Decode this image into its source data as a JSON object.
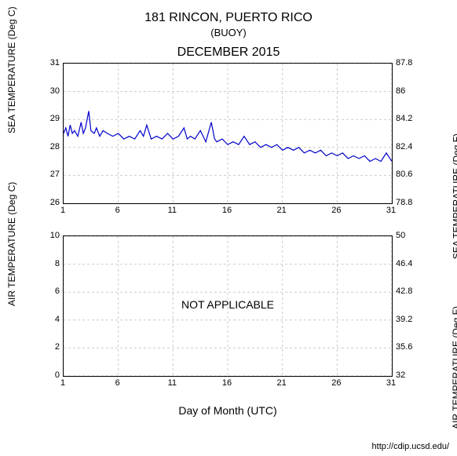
{
  "header": {
    "station": "181 RINCON, PUERTO RICO",
    "subtype": "(BUOY)",
    "period": "DECEMBER 2015"
  },
  "xaxis": {
    "label": "Day of Month (UTC)",
    "min": 1,
    "max": 31,
    "ticks": [
      1,
      6,
      11,
      16,
      21,
      26,
      31
    ]
  },
  "chart1": {
    "type": "line",
    "ylabel_left": "SEA TEMPERATURE (Deg C)",
    "ylabel_right": "SEA TEMPERATURE (Deg F)",
    "ylim_left": [
      26,
      31
    ],
    "ylim_right": [
      78.8,
      87.8
    ],
    "yticks_left": [
      26,
      27,
      28,
      29,
      30,
      31
    ],
    "yticks_right": [
      78.8,
      80.6,
      82.4,
      84.2,
      86,
      87.8
    ],
    "line_color": "#0000cc",
    "line_width": 1.2,
    "grid_color": "#cccccc",
    "data": [
      [
        1.0,
        28.5
      ],
      [
        1.2,
        28.7
      ],
      [
        1.4,
        28.4
      ],
      [
        1.6,
        28.8
      ],
      [
        1.8,
        28.5
      ],
      [
        2.0,
        28.6
      ],
      [
        2.3,
        28.4
      ],
      [
        2.6,
        28.9
      ],
      [
        2.8,
        28.5
      ],
      [
        3.0,
        28.7
      ],
      [
        3.3,
        29.3
      ],
      [
        3.5,
        28.6
      ],
      [
        3.8,
        28.5
      ],
      [
        4.0,
        28.7
      ],
      [
        4.3,
        28.4
      ],
      [
        4.6,
        28.6
      ],
      [
        5.0,
        28.5
      ],
      [
        5.5,
        28.4
      ],
      [
        6.0,
        28.5
      ],
      [
        6.5,
        28.3
      ],
      [
        7.0,
        28.4
      ],
      [
        7.5,
        28.3
      ],
      [
        8.0,
        28.6
      ],
      [
        8.3,
        28.4
      ],
      [
        8.6,
        28.8
      ],
      [
        9.0,
        28.3
      ],
      [
        9.5,
        28.4
      ],
      [
        10.0,
        28.3
      ],
      [
        10.5,
        28.5
      ],
      [
        11.0,
        28.3
      ],
      [
        11.5,
        28.4
      ],
      [
        12.0,
        28.7
      ],
      [
        12.3,
        28.3
      ],
      [
        12.6,
        28.4
      ],
      [
        13.0,
        28.3
      ],
      [
        13.5,
        28.6
      ],
      [
        14.0,
        28.2
      ],
      [
        14.5,
        28.9
      ],
      [
        14.8,
        28.3
      ],
      [
        15.0,
        28.2
      ],
      [
        15.5,
        28.3
      ],
      [
        16.0,
        28.1
      ],
      [
        16.5,
        28.2
      ],
      [
        17.0,
        28.1
      ],
      [
        17.5,
        28.4
      ],
      [
        18.0,
        28.1
      ],
      [
        18.5,
        28.2
      ],
      [
        19.0,
        28.0
      ],
      [
        19.5,
        28.1
      ],
      [
        20.0,
        28.0
      ],
      [
        20.5,
        28.1
      ],
      [
        21.0,
        27.9
      ],
      [
        21.5,
        28.0
      ],
      [
        22.0,
        27.9
      ],
      [
        22.5,
        28.0
      ],
      [
        23.0,
        27.8
      ],
      [
        23.5,
        27.9
      ],
      [
        24.0,
        27.8
      ],
      [
        24.5,
        27.9
      ],
      [
        25.0,
        27.7
      ],
      [
        25.5,
        27.8
      ],
      [
        26.0,
        27.7
      ],
      [
        26.5,
        27.8
      ],
      [
        27.0,
        27.6
      ],
      [
        27.5,
        27.7
      ],
      [
        28.0,
        27.6
      ],
      [
        28.5,
        27.7
      ],
      [
        29.0,
        27.5
      ],
      [
        29.5,
        27.6
      ],
      [
        30.0,
        27.5
      ],
      [
        30.5,
        27.8
      ],
      [
        31.0,
        27.5
      ]
    ]
  },
  "chart2": {
    "type": "line",
    "ylabel_left": "AIR TEMPERATURE (Deg C)",
    "ylabel_right": "AIR TEMPERATURE (Deg F)",
    "ylim_left": [
      0,
      10
    ],
    "ylim_right": [
      32,
      50
    ],
    "yticks_left": [
      0,
      2,
      4,
      6,
      8,
      10
    ],
    "yticks_right": [
      32,
      35.6,
      39.2,
      42.8,
      46.4,
      50
    ],
    "grid_color": "#cccccc",
    "overlay_text": "NOT APPLICABLE",
    "data": []
  },
  "source": "http://cdip.ucsd.edu/"
}
